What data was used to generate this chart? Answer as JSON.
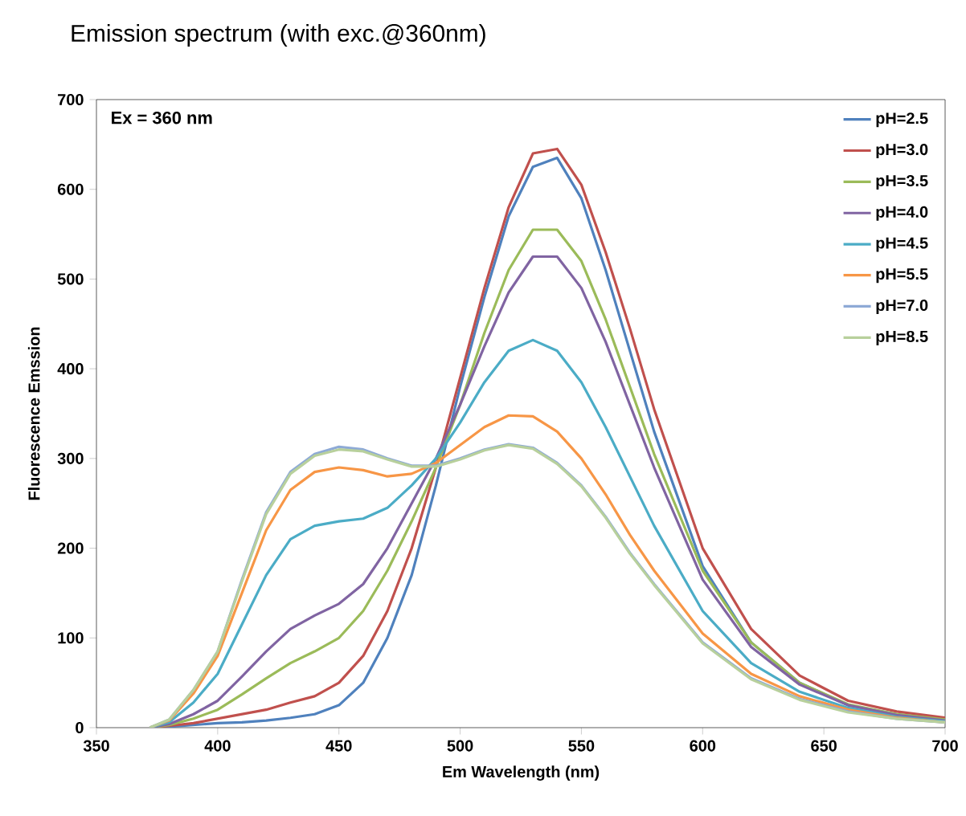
{
  "chart_data": {
    "type": "line",
    "title": "Emission spectrum (with exc.@360nm)",
    "xlabel": "Em Wavelength (nm)",
    "ylabel": "Fluorescence Emssion",
    "annotations": [
      "Ex = 360 nm"
    ],
    "x": [
      372,
      380,
      390,
      400,
      410,
      420,
      430,
      440,
      450,
      460,
      470,
      480,
      490,
      500,
      510,
      520,
      530,
      540,
      550,
      560,
      570,
      580,
      600,
      620,
      640,
      660,
      680,
      700
    ],
    "series": [
      {
        "name": "pH=2.5",
        "color": "#4f81bd",
        "values": [
          0,
          1,
          3,
          5,
          6,
          8,
          11,
          15,
          25,
          50,
          100,
          170,
          270,
          380,
          480,
          570,
          625,
          635,
          590,
          510,
          420,
          330,
          180,
          95,
          50,
          25,
          15,
          9
        ]
      },
      {
        "name": "pH=3.0",
        "color": "#c0504d",
        "values": [
          0,
          2,
          5,
          10,
          15,
          20,
          28,
          35,
          50,
          80,
          130,
          200,
          290,
          390,
          490,
          580,
          640,
          645,
          605,
          530,
          445,
          355,
          200,
          110,
          58,
          30,
          18,
          11
        ]
      },
      {
        "name": "pH=3.5",
        "color": "#9bbb59",
        "values": [
          0,
          3,
          10,
          20,
          37,
          55,
          72,
          85,
          100,
          130,
          175,
          230,
          290,
          360,
          440,
          510,
          555,
          555,
          520,
          455,
          380,
          305,
          175,
          95,
          50,
          26,
          15,
          9
        ]
      },
      {
        "name": "pH=4.0",
        "color": "#8064a2",
        "values": [
          0,
          4,
          15,
          30,
          57,
          85,
          110,
          125,
          138,
          160,
          200,
          250,
          300,
          360,
          425,
          485,
          525,
          525,
          490,
          430,
          360,
          290,
          165,
          90,
          48,
          25,
          14,
          8
        ]
      },
      {
        "name": "pH=4.5",
        "color": "#4bacc6",
        "values": [
          0,
          6,
          28,
          60,
          115,
          170,
          210,
          225,
          230,
          233,
          245,
          270,
          300,
          340,
          385,
          420,
          432,
          420,
          385,
          335,
          280,
          225,
          130,
          72,
          40,
          22,
          12,
          7
        ]
      },
      {
        "name": "pH=5.5",
        "color": "#f79646",
        "values": [
          0,
          8,
          38,
          80,
          150,
          220,
          265,
          285,
          290,
          287,
          280,
          283,
          295,
          315,
          335,
          348,
          347,
          330,
          300,
          260,
          215,
          175,
          105,
          60,
          35,
          20,
          11,
          6
        ]
      },
      {
        "name": "pH=7.0",
        "color": "#8eaad6",
        "values": [
          0,
          9,
          42,
          85,
          165,
          240,
          285,
          305,
          313,
          310,
          300,
          292,
          292,
          300,
          310,
          316,
          312,
          295,
          270,
          235,
          195,
          160,
          95,
          55,
          32,
          18,
          10,
          6
        ]
      },
      {
        "name": "pH=8.5",
        "color": "#b8d09c",
        "values": [
          0,
          9,
          42,
          85,
          163,
          238,
          283,
          303,
          310,
          308,
          299,
          291,
          291,
          299,
          309,
          315,
          311,
          294,
          269,
          234,
          194,
          159,
          94,
          54,
          31,
          17,
          10,
          6
        ]
      }
    ],
    "xlim": [
      350,
      700
    ],
    "xticks": [
      350,
      400,
      450,
      500,
      550,
      600,
      650,
      700
    ],
    "ylim": [
      0,
      700
    ],
    "yticks": [
      0,
      100,
      200,
      300,
      400,
      500,
      600,
      700
    ],
    "grid": false,
    "legend": "top right",
    "line_style": "solid"
  }
}
